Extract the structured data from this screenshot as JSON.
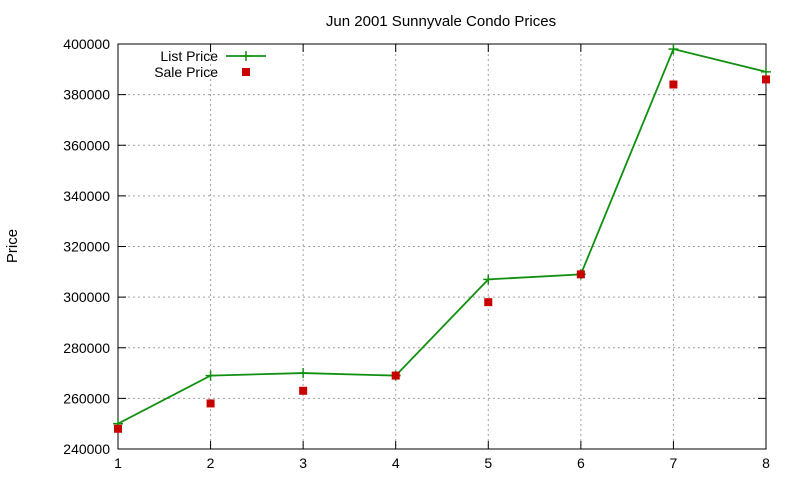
{
  "chart_data": {
    "type": "line",
    "title": "Jun 2001 Sunnyvale Condo Prices",
    "xlabel": "",
    "ylabel": "Price",
    "xlim": [
      1,
      8
    ],
    "ylim": [
      240000,
      400000
    ],
    "xticks": [
      "1",
      "2",
      "3",
      "4",
      "5",
      "6",
      "7",
      "8"
    ],
    "yticks": [
      "240000",
      "260000",
      "280000",
      "300000",
      "320000",
      "340000",
      "360000",
      "380000",
      "400000"
    ],
    "grid": true,
    "legend_position": "top-left",
    "x": [
      1,
      2,
      3,
      4,
      5,
      6,
      7,
      8
    ],
    "series": [
      {
        "name": "List Price",
        "style": "line-points",
        "marker": "plus",
        "color": "#109010",
        "values": [
          250000,
          269000,
          270000,
          269000,
          307000,
          309000,
          398000,
          389000
        ]
      },
      {
        "name": "Sale Price",
        "style": "points",
        "marker": "square",
        "color": "#c80000",
        "values": [
          248000,
          258000,
          263000,
          269000,
          298000,
          309000,
          384000,
          386000
        ]
      }
    ]
  }
}
